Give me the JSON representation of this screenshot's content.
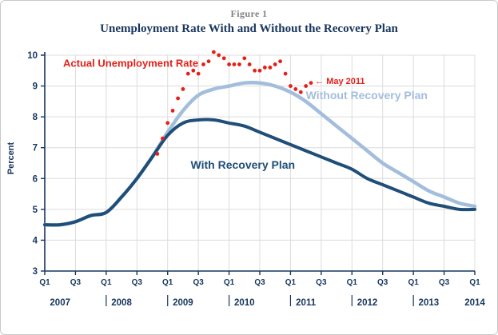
{
  "figure": {
    "label": "Figure 1",
    "title": "Unemployment Rate With and Without the Recovery Plan"
  },
  "colors": {
    "title": "#17365d",
    "figure_label": "#808080",
    "axis": "#17365d",
    "grid": "#dcdcdc",
    "actual": "#e32119",
    "without": "#a3bedd",
    "with": "#1f4e79"
  },
  "chart_data": {
    "type": "line",
    "title": "Unemployment Rate With and Without the Recovery Plan",
    "xlabel": "",
    "ylabel": "Percent",
    "ylim": [
      3,
      10
    ],
    "yticks": [
      3,
      4,
      5,
      6,
      7,
      8,
      9,
      10
    ],
    "x_unit": "quarters since 2007Q1",
    "grid": "on",
    "legend_position": "inline-labels",
    "xticks": [
      {
        "pos": 0,
        "label": "Q1"
      },
      {
        "pos": 2,
        "label": "Q3"
      },
      {
        "pos": 4,
        "label": "Q1"
      },
      {
        "pos": 6,
        "label": "Q3"
      },
      {
        "pos": 8,
        "label": "Q1"
      },
      {
        "pos": 10,
        "label": "Q3"
      },
      {
        "pos": 12,
        "label": "Q1"
      },
      {
        "pos": 14,
        "label": "Q3"
      },
      {
        "pos": 16,
        "label": "Q1"
      },
      {
        "pos": 18,
        "label": "Q3"
      },
      {
        "pos": 20,
        "label": "Q1"
      },
      {
        "pos": 22,
        "label": "Q3"
      },
      {
        "pos": 24,
        "label": "Q1"
      },
      {
        "pos": 26,
        "label": "Q3"
      },
      {
        "pos": 28,
        "label": "Q1"
      }
    ],
    "years": [
      {
        "pos": 1,
        "label": "2007"
      },
      {
        "pos": 5,
        "label": "2008"
      },
      {
        "pos": 9,
        "label": "2009"
      },
      {
        "pos": 13,
        "label": "2010"
      },
      {
        "pos": 17,
        "label": "2011"
      },
      {
        "pos": 21,
        "label": "2012"
      },
      {
        "pos": 25,
        "label": "2013"
      },
      {
        "pos": 28,
        "label": "2014"
      }
    ],
    "year_dividers": [
      4,
      8,
      12,
      16,
      20,
      24
    ],
    "series": [
      {
        "name": "Without Recovery Plan",
        "type": "line",
        "color": "without",
        "x": [
          0,
          1,
          2,
          3,
          4,
          5,
          6,
          7,
          8,
          9,
          10,
          11,
          12,
          13,
          14,
          15,
          16,
          17,
          18,
          19,
          20,
          21,
          22,
          23,
          24,
          25,
          26,
          27,
          28
        ],
        "values": [
          4.5,
          4.5,
          4.6,
          4.8,
          4.9,
          5.4,
          6.0,
          6.7,
          7.5,
          8.2,
          8.7,
          8.9,
          9.0,
          9.1,
          9.1,
          9.0,
          8.8,
          8.5,
          8.1,
          7.7,
          7.3,
          6.9,
          6.5,
          6.2,
          5.9,
          5.6,
          5.4,
          5.2,
          5.1
        ]
      },
      {
        "name": "With Recovery Plan",
        "type": "line",
        "color": "with",
        "x": [
          0,
          1,
          2,
          3,
          4,
          5,
          6,
          7,
          8,
          9,
          10,
          11,
          12,
          13,
          14,
          15,
          16,
          17,
          18,
          19,
          20,
          21,
          22,
          23,
          24,
          25,
          26,
          27,
          28
        ],
        "values": [
          4.5,
          4.5,
          4.6,
          4.8,
          4.9,
          5.4,
          6.0,
          6.7,
          7.4,
          7.8,
          7.9,
          7.9,
          7.8,
          7.7,
          7.5,
          7.3,
          7.1,
          6.9,
          6.7,
          6.5,
          6.3,
          6.0,
          5.8,
          5.6,
          5.4,
          5.2,
          5.1,
          5.0,
          5.0
        ]
      },
      {
        "name": "Actual Unemployment Rate",
        "type": "scatter",
        "color": "actual",
        "x": [
          7.33,
          7.67,
          8,
          8.33,
          8.67,
          9,
          9.33,
          9.67,
          10,
          10.33,
          10.67,
          11,
          11.33,
          11.67,
          12,
          12.33,
          12.67,
          13,
          13.33,
          13.67,
          14,
          14.33,
          14.67,
          15,
          15.33,
          15.67,
          16,
          16.33,
          16.67,
          17,
          17.33
        ],
        "values": [
          6.8,
          7.3,
          7.8,
          8.2,
          8.6,
          8.9,
          9.4,
          9.5,
          9.4,
          9.7,
          9.8,
          10.1,
          10.0,
          9.9,
          9.7,
          9.7,
          9.7,
          9.9,
          9.7,
          9.5,
          9.5,
          9.6,
          9.6,
          9.7,
          9.8,
          9.4,
          9.0,
          8.9,
          8.8,
          9.0,
          9.1
        ]
      }
    ],
    "annotations": [
      {
        "text": "Actual Unemployment Rate",
        "color": "actual",
        "q": 1.2,
        "v": 9.75,
        "size": 13
      },
      {
        "text": "Without Recovery Plan",
        "color": "without",
        "q": 17.0,
        "v": 8.7,
        "size": 14
      },
      {
        "text": "With Recovery Plan",
        "color": "with",
        "q": 9.5,
        "v": 6.45,
        "size": 14
      },
      {
        "text": "← May 2011",
        "color": "actual",
        "q": 17.6,
        "v": 9.15,
        "size": 11
      }
    ]
  }
}
